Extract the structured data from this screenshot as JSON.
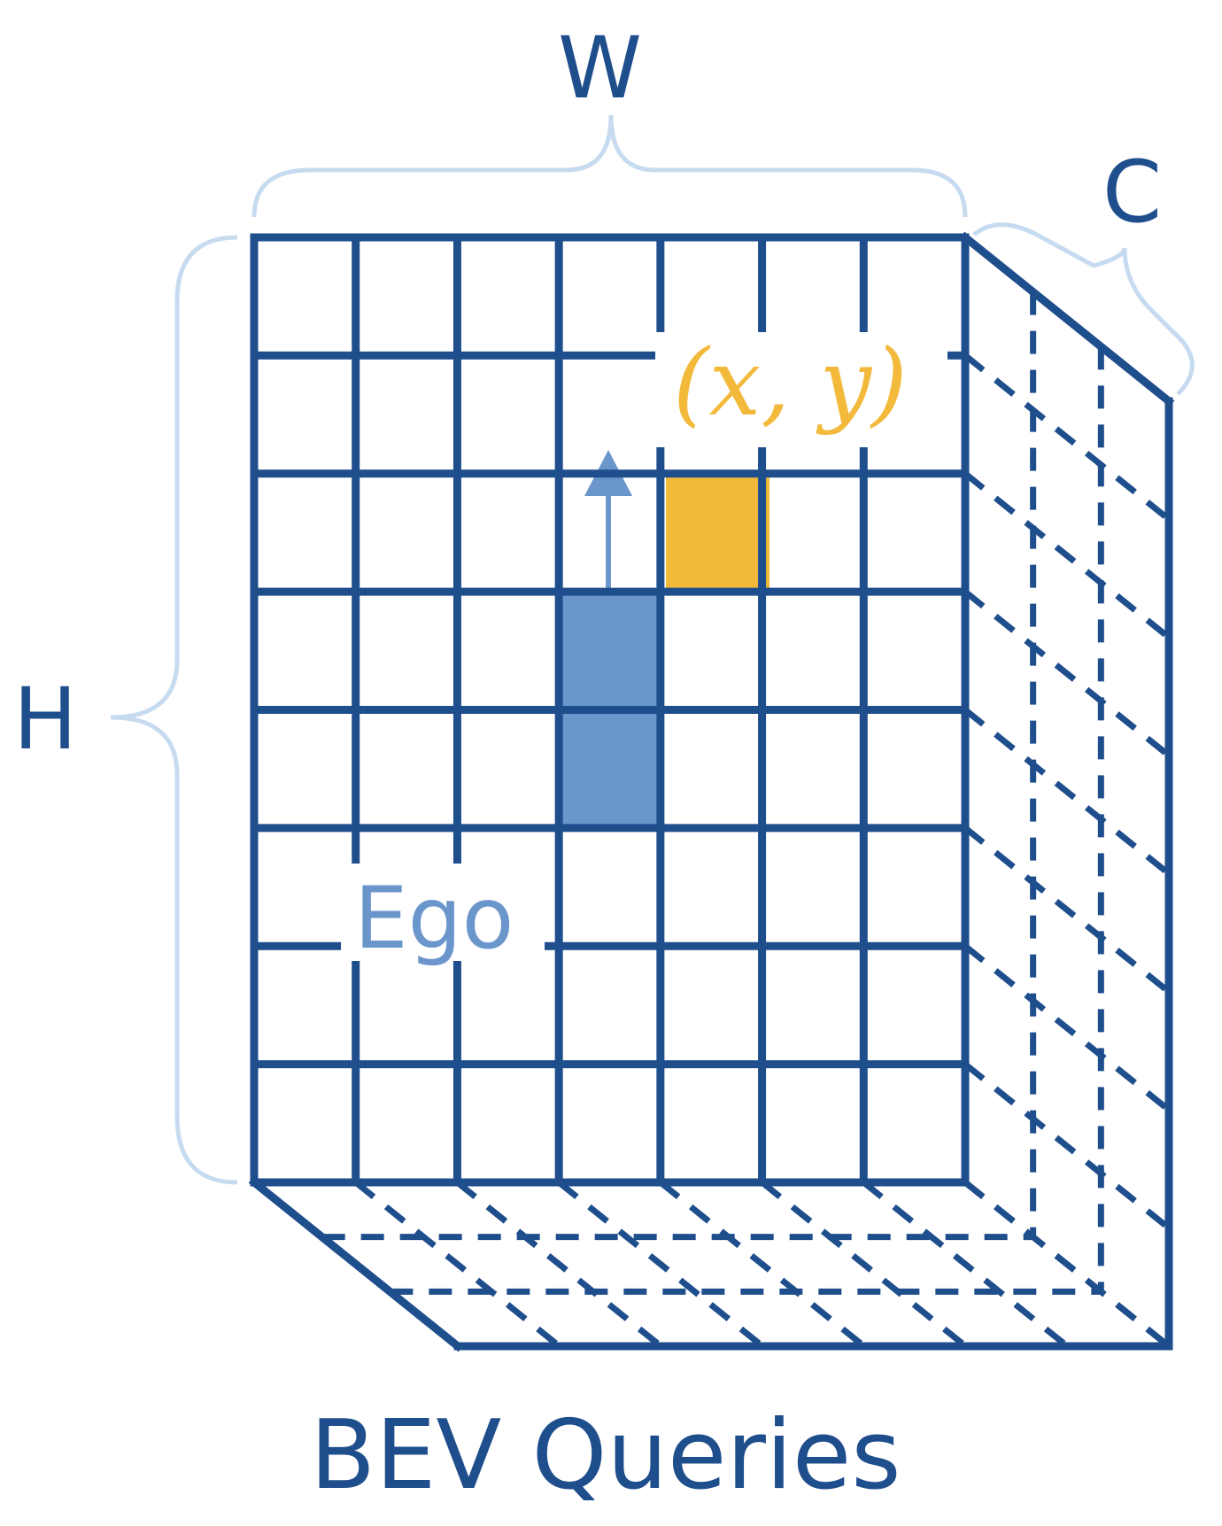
{
  "labels": {
    "width": "W",
    "height": "H",
    "channels": "C",
    "coordinate": "(x, y)",
    "ego": "Ego",
    "title": "BEV Queries"
  },
  "colors": {
    "grid": "#1f4e8c",
    "ego": "#6b96cb",
    "target": "#f2b93b",
    "brace": "#c6dbef"
  },
  "grid": {
    "columns": 7,
    "rows": 8
  },
  "icons": {
    "heading": "up-arrow-icon"
  }
}
